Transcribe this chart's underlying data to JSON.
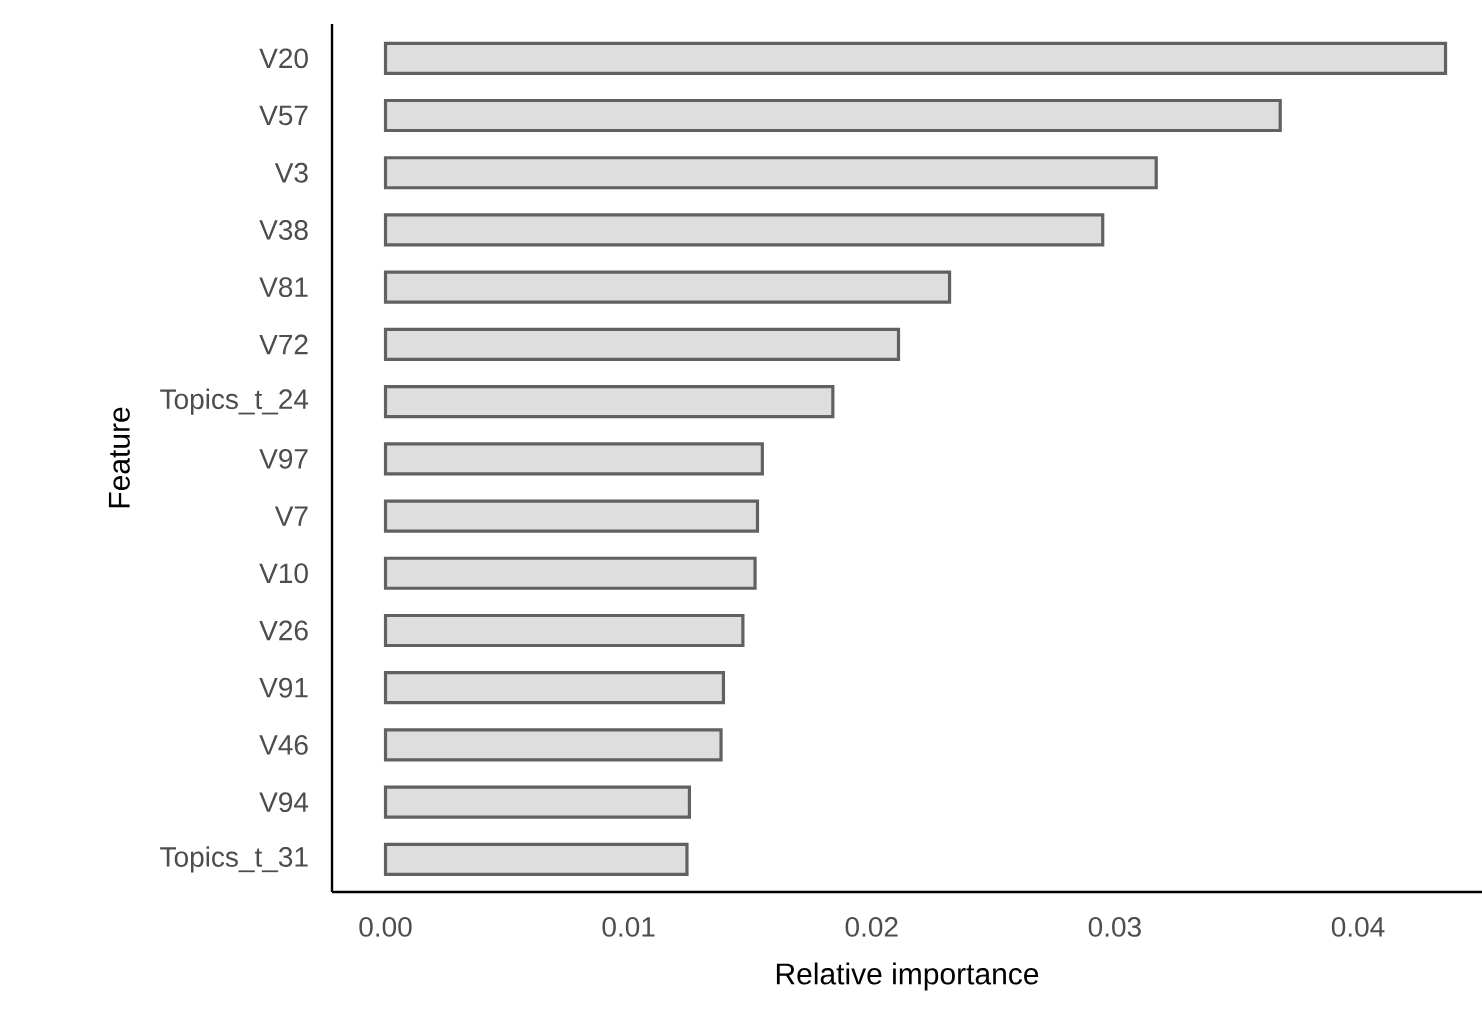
{
  "chart_data": {
    "type": "bar",
    "orientation": "horizontal",
    "xlabel": "Relative importance",
    "ylabel": "Feature",
    "categories": [
      "V20",
      "V57",
      "V3",
      "V38",
      "V81",
      "V72",
      "Topics_t_24",
      "V97",
      "V7",
      "V10",
      "V26",
      "V91",
      "V46",
      "V94",
      "Topics_t_31"
    ],
    "values": [
      0.0436,
      0.0368,
      0.0317,
      0.0295,
      0.0232,
      0.0211,
      0.0184,
      0.0155,
      0.0153,
      0.0152,
      0.0147,
      0.0139,
      0.0138,
      0.0125,
      0.0124
    ],
    "color": "#dedede",
    "xlim": [
      -0.0022,
      0.0451
    ],
    "xticks": [
      {
        "value": 0,
        "label": "0.00"
      },
      {
        "value": 0.01,
        "label": "0.01"
      },
      {
        "value": 0.02,
        "label": "0.02"
      },
      {
        "value": 0.03,
        "label": "0.03"
      },
      {
        "value": 0.04,
        "label": "0.04"
      }
    ]
  }
}
